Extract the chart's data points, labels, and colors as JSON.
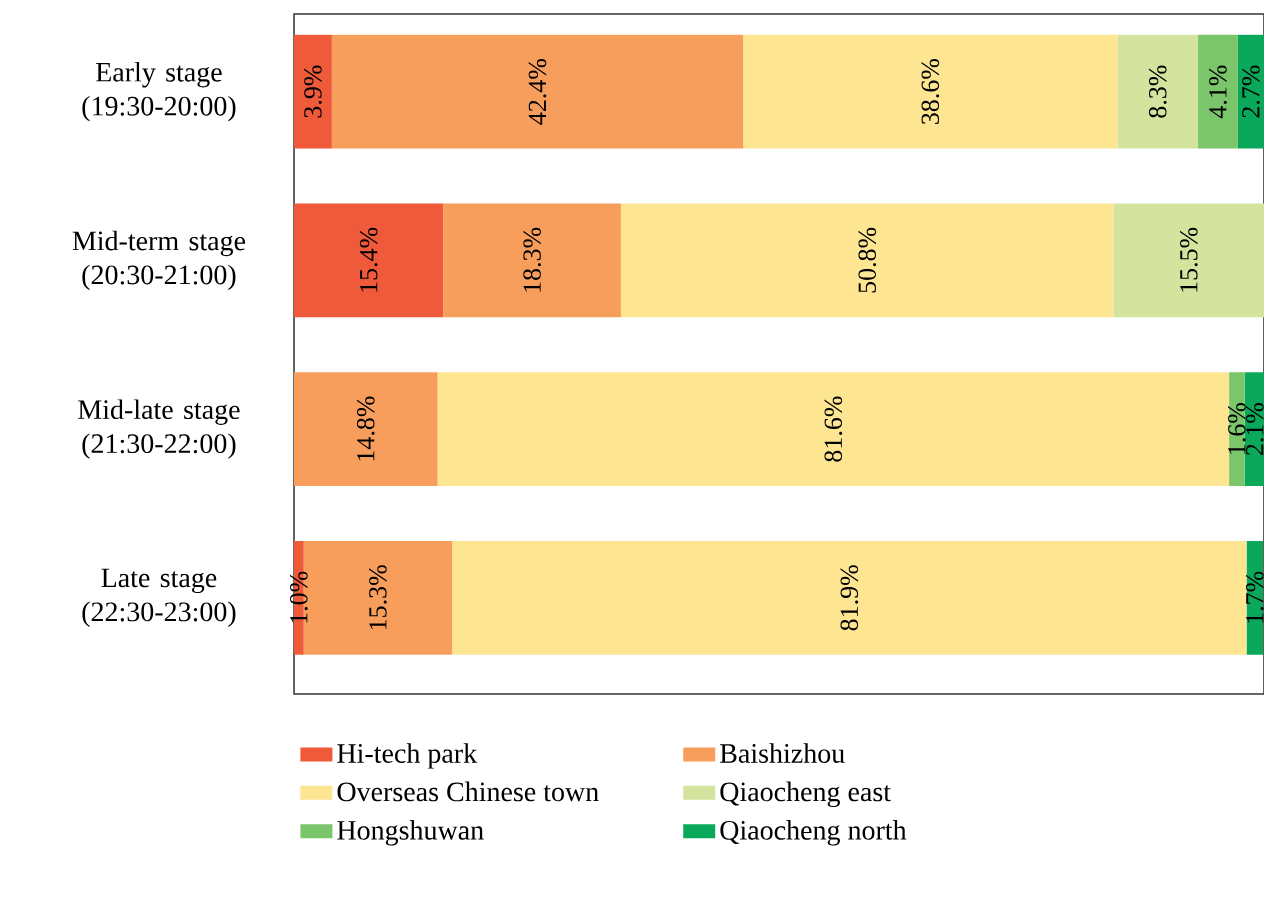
{
  "chart_data": {
    "type": "bar",
    "orientation": "horizontal",
    "stacked": true,
    "xlim": [
      0,
      100
    ],
    "tick_labels": "y",
    "legend": "bottom",
    "categories": [
      "Early stage (19:30-20:00)",
      "Mid-term stage (20:30-21:00)",
      "Mid-late stage (21:30-22:00)",
      "Late stage (22:30-23:00)"
    ],
    "series": [
      {
        "name": "Hi-tech park",
        "color": "#ee5a3a",
        "values": [
          3.9,
          15.4,
          null,
          1.0
        ],
        "value_labels": [
          "3.9%",
          "15.4%",
          null,
          "1.0%"
        ]
      },
      {
        "name": "Baishizhou",
        "color": "#f89e5c",
        "values": [
          42.4,
          18.3,
          14.8,
          15.3
        ],
        "value_labels": [
          "42.4%",
          "18.3%",
          "14.8%",
          "15.3%"
        ]
      },
      {
        "name": "Overseas Chinese town",
        "color": "#fee592",
        "values": [
          38.6,
          50.8,
          81.6,
          81.9
        ],
        "value_labels": [
          "38.6%",
          "50.8%",
          "81.6%",
          "81.9%"
        ]
      },
      {
        "name": "Qiaocheng east",
        "color": "#d4e39d",
        "values": [
          8.3,
          15.5,
          null,
          null
        ],
        "value_labels": [
          "8.3%",
          "15.5%",
          null,
          null
        ]
      },
      {
        "name": "Hongshuwan",
        "color": "#7bc56a",
        "values": [
          4.1,
          null,
          1.6,
          null
        ],
        "value_labels": [
          "4.1%",
          null,
          "1.6%",
          null
        ]
      },
      {
        "name": "Qiaocheng north",
        "color": "#0aa85a",
        "values": [
          2.7,
          null,
          2.1,
          1.7
        ],
        "value_labels": [
          "2.7%",
          null,
          "2.1%",
          "1.7%"
        ]
      }
    ]
  }
}
